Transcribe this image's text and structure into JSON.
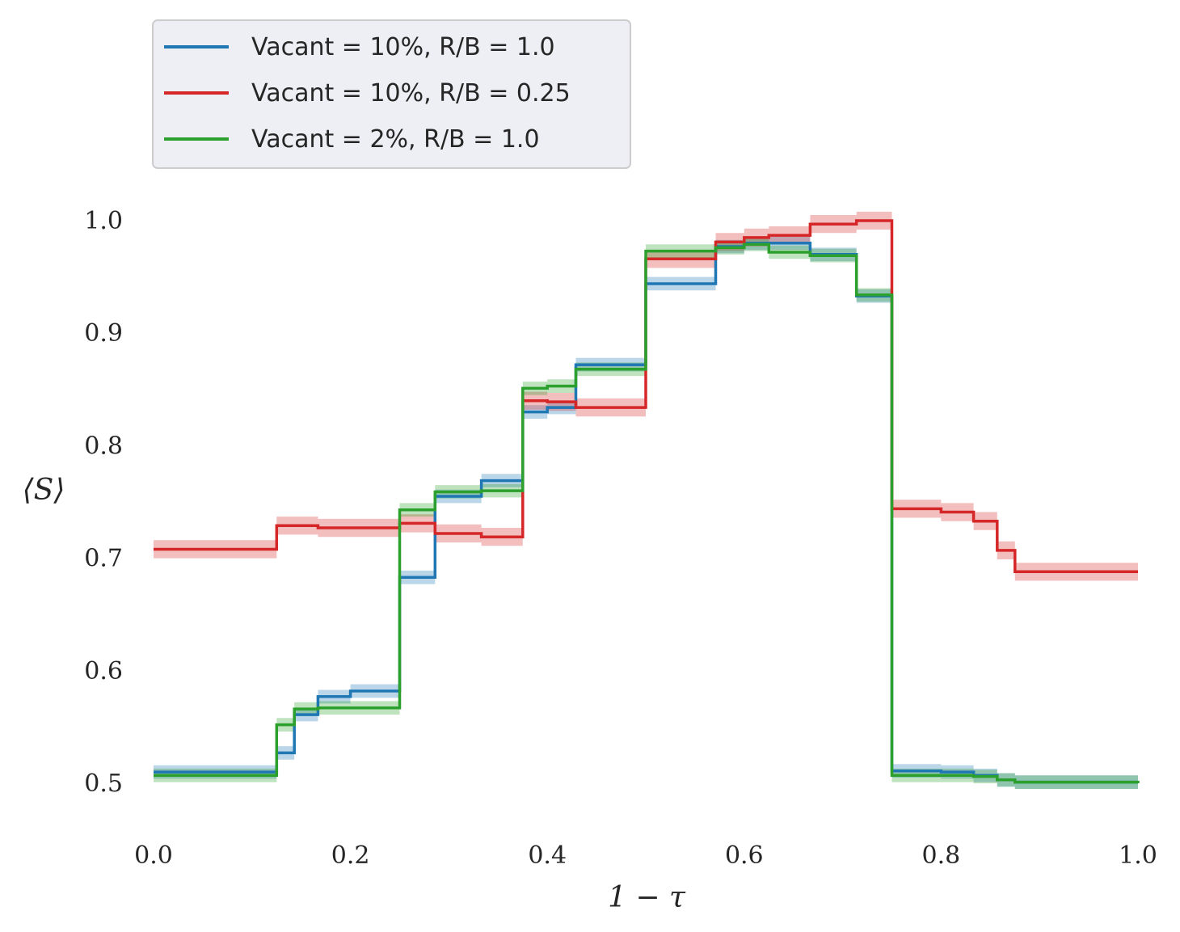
{
  "chart_data": {
    "type": "line",
    "title": "",
    "xlabel": "1 − τ",
    "ylabel": "⟨S⟩",
    "xlim": [
      0.0,
      1.0
    ],
    "ylim": [
      0.45,
      1.02
    ],
    "x_ticks": [
      0.0,
      0.2,
      0.4,
      0.6,
      0.8,
      1.0
    ],
    "x_tick_labels": [
      "0.0",
      "0.2",
      "0.4",
      "0.6",
      "0.8",
      "1.0"
    ],
    "y_ticks": [
      0.5,
      0.6,
      0.7,
      0.8,
      0.9,
      1.0
    ],
    "y_tick_labels": [
      "0.5",
      "0.6",
      "0.7",
      "0.8",
      "0.9",
      "1.0"
    ],
    "grid": false,
    "legend_position": "top-left",
    "step": true,
    "series": [
      {
        "name": "Vacant = 10%, R/B = 1.0",
        "color": "#1f77b4",
        "band": 0.006,
        "x": [
          0.0,
          0.125,
          0.143,
          0.167,
          0.2,
          0.25,
          0.286,
          0.333,
          0.375,
          0.4,
          0.429,
          0.5,
          0.571,
          0.6,
          0.667,
          0.714,
          0.75,
          0.8,
          0.833,
          0.857,
          0.875,
          1.0
        ],
        "y": [
          0.51,
          0.527,
          0.561,
          0.577,
          0.582,
          0.683,
          0.755,
          0.769,
          0.83,
          0.834,
          0.872,
          0.944,
          0.977,
          0.98,
          0.97,
          0.933,
          0.511,
          0.51,
          0.507,
          0.503,
          0.501,
          0.501
        ]
      },
      {
        "name": "Vacant = 10%, R/B = 0.25",
        "color": "#d62728",
        "band": 0.008,
        "x": [
          0.0,
          0.125,
          0.167,
          0.25,
          0.286,
          0.333,
          0.375,
          0.4,
          0.429,
          0.5,
          0.571,
          0.6,
          0.625,
          0.667,
          0.714,
          0.75,
          0.8,
          0.833,
          0.857,
          0.875,
          1.0
        ],
        "y": [
          0.708,
          0.729,
          0.727,
          0.731,
          0.722,
          0.719,
          0.84,
          0.839,
          0.834,
          0.966,
          0.981,
          0.985,
          0.987,
          0.997,
          1.0,
          0.744,
          0.741,
          0.733,
          0.707,
          0.688,
          0.688
        ]
      },
      {
        "name": "Vacant = 2%, R/B = 1.0",
        "color": "#2ca02c",
        "band": 0.006,
        "x": [
          0.0,
          0.125,
          0.143,
          0.167,
          0.25,
          0.286,
          0.333,
          0.375,
          0.4,
          0.429,
          0.5,
          0.571,
          0.6,
          0.625,
          0.667,
          0.714,
          0.75,
          0.8,
          0.833,
          0.857,
          0.875,
          1.0
        ],
        "y": [
          0.507,
          0.552,
          0.566,
          0.567,
          0.743,
          0.759,
          0.76,
          0.851,
          0.853,
          0.868,
          0.973,
          0.976,
          0.979,
          0.972,
          0.969,
          0.934,
          0.507,
          0.507,
          0.506,
          0.503,
          0.501,
          0.5
        ]
      }
    ]
  }
}
